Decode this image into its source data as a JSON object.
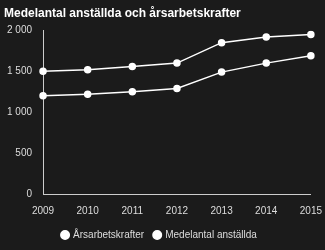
{
  "chart_data": {
    "type": "line",
    "title": "Medelantal anställda och årsarbetskrafter",
    "categories": [
      "2009",
      "2010",
      "2011",
      "2012",
      "2013",
      "2014",
      "2015"
    ],
    "series": [
      {
        "name": "Årsarbetskrafter",
        "color": "#ffffff",
        "marker": "circle",
        "values": [
          1200,
          1220,
          1250,
          1290,
          1490,
          1600,
          1690
        ]
      },
      {
        "name": "Medelantal anställda",
        "color": "#ffffff",
        "marker": "circle",
        "values": [
          1500,
          1520,
          1560,
          1600,
          1850,
          1920,
          1950
        ]
      }
    ],
    "ylim": [
      0,
      2000
    ],
    "yticks": [
      0,
      500,
      {
        "value": 1000,
        "label": "1 000"
      },
      {
        "value": 1500,
        "label": "1 500"
      },
      {
        "value": 2000,
        "label": "2 000"
      }
    ],
    "grid": false,
    "legend": "bottom"
  }
}
